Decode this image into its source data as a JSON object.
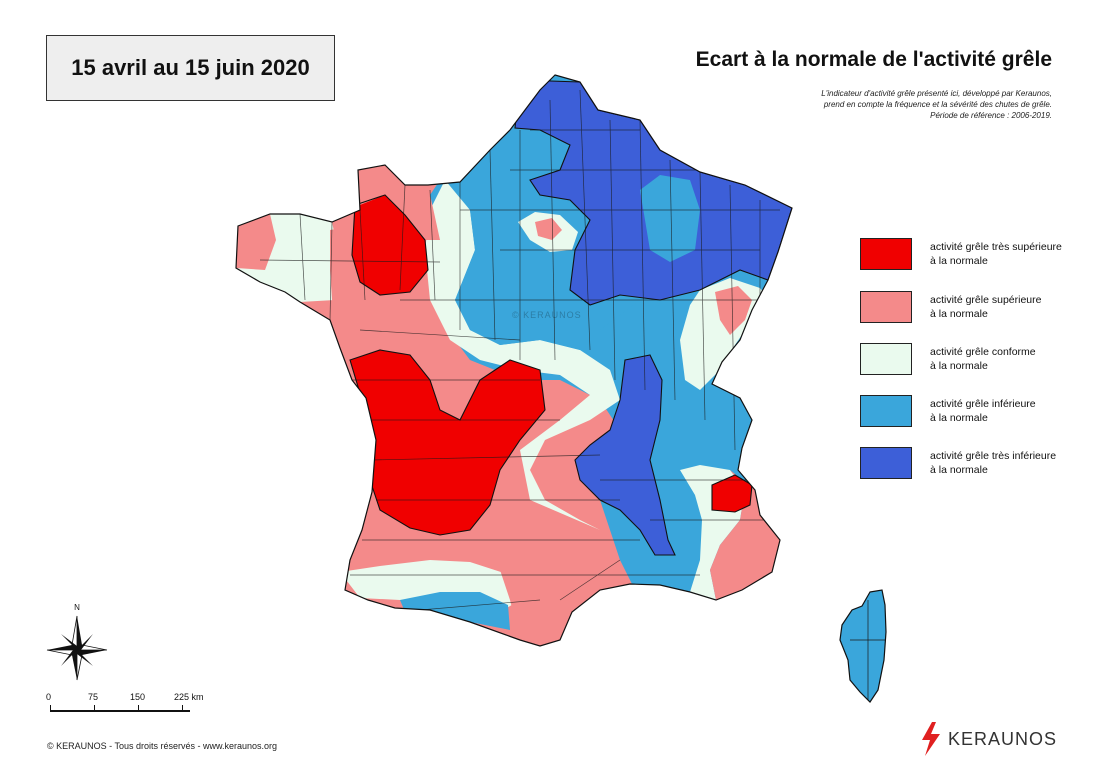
{
  "header": {
    "period": "15 avril au 15 juin 2020",
    "title": "Ecart à la normale de l'activité grêle",
    "description_lines": [
      "L'indicateur d'activité grêle présenté ici, développé par Keraunos,",
      "prend en compte la fréquence et la sévérité des chutes de grêle.",
      "Période de référence : 2006-2019."
    ]
  },
  "legend": {
    "items": [
      {
        "line1": "activité grêle très supérieure",
        "line2": "à la normale",
        "color": "#f00000"
      },
      {
        "line1": "activité grêle supérieure",
        "line2": "à la normale",
        "color": "#f48a8a"
      },
      {
        "line1": "activité grêle conforme",
        "line2": "à la normale",
        "color": "#eafaee"
      },
      {
        "line1": "activité grêle inférieure",
        "line2": "à la normale",
        "color": "#3aa6db"
      },
      {
        "line1": "activité grêle très inférieure",
        "line2": "à la normale",
        "color": "#3d5fd8"
      }
    ]
  },
  "compass": {
    "north_label": "N"
  },
  "scale": {
    "labels": [
      "0",
      "75",
      "150",
      "225 km"
    ]
  },
  "watermark": "© KERAUNOS",
  "footer": {
    "copyright": "© KERAUNOS - Tous droits réservés - www.keraunos.org"
  },
  "brand": {
    "name": "KERAUNOS",
    "accent": "#e02020"
  },
  "colors": {
    "very_above": "#f00000",
    "above": "#f48a8a",
    "normal": "#eafaee",
    "below": "#3aa6db",
    "very_below": "#3d5fd8"
  }
}
